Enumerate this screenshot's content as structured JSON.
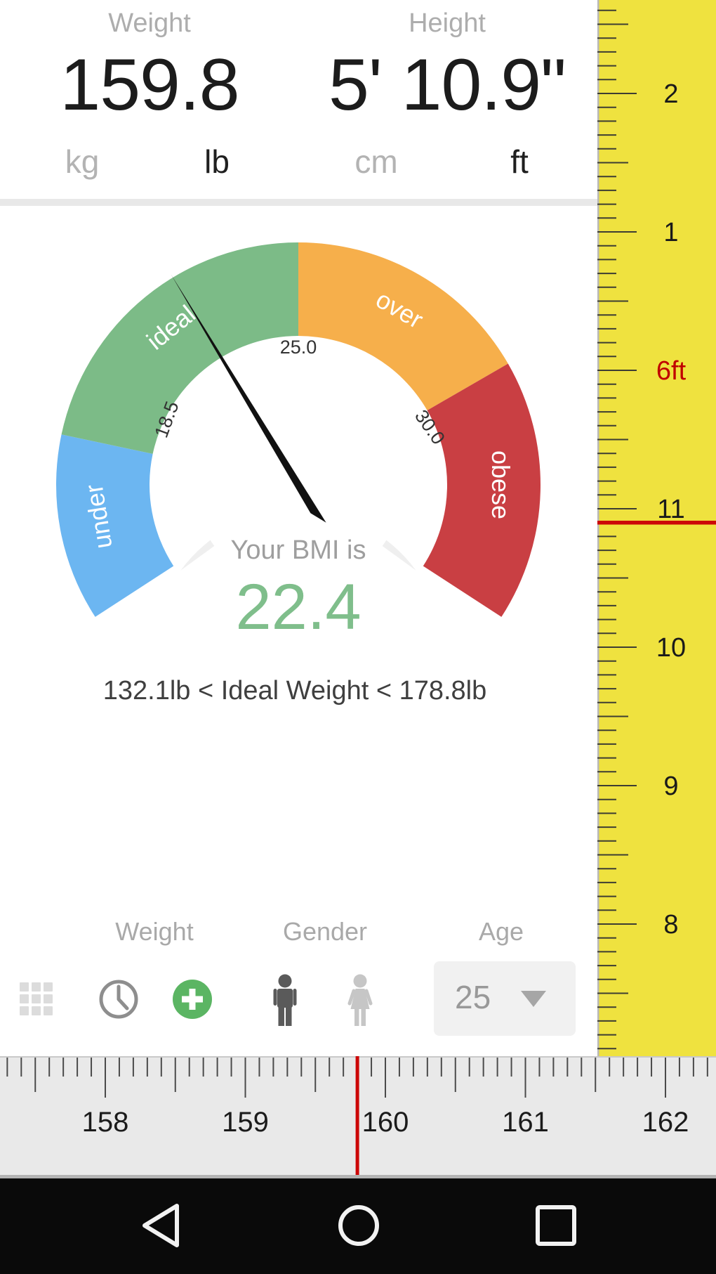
{
  "measurements": {
    "weight": {
      "label": "Weight",
      "value": "159.8",
      "units": [
        {
          "label": "kg",
          "active": false
        },
        {
          "label": "lb",
          "active": true
        }
      ]
    },
    "height": {
      "label": "Height",
      "value": "5' 10.9\"",
      "units": [
        {
          "label": "cm",
          "active": false
        },
        {
          "label": "ft",
          "active": true
        }
      ]
    }
  },
  "chart_data": {
    "type": "gauge",
    "title": "Your BMI is",
    "value": 22.4,
    "value_display": "22.4",
    "min": 15,
    "max": 35,
    "segments": [
      {
        "label": "under",
        "from": 15,
        "to": 18.5,
        "color": "#6CB6F1"
      },
      {
        "label": "ideal",
        "from": 18.5,
        "to": 25,
        "color": "#7CBB87"
      },
      {
        "label": "over",
        "from": 25,
        "to": 30,
        "color": "#F6AF4B"
      },
      {
        "label": "obese",
        "from": 30,
        "to": 35,
        "color": "#C93F43"
      }
    ],
    "ticks": [
      "18.5",
      "25.0",
      "30.0"
    ],
    "ring_color": "#EFEFEF",
    "needle_color": "#111111"
  },
  "ideal_weight": {
    "text": "132.1lb < Ideal Weight < 178.8lb"
  },
  "controls": {
    "weight_label": "Weight",
    "gender_label": "Gender",
    "age_label": "Age",
    "age_value": "25",
    "icons": [
      "grid",
      "history-clock",
      "add-entry",
      "male",
      "female"
    ],
    "accent_green": "#5BB563"
  },
  "height_ruler": {
    "bg": "#EFE23F",
    "tick_color": "#3D3D33",
    "labels": [
      "2",
      "1",
      "6ft",
      "11",
      "10",
      "9",
      "8"
    ],
    "highlight_label": "6ft",
    "highlight_color": "#C00000",
    "marker_inches": 70.9,
    "marker_color": "#CC0707"
  },
  "weight_ruler": {
    "bg": "#E9E9E9",
    "tick_color": "#4A4A4A",
    "labels": [
      "158",
      "159",
      "160",
      "161",
      "162"
    ],
    "first_value": 158,
    "marker_value": 159.8,
    "marker_color": "#CC0707"
  },
  "nav": {
    "icons": [
      "back",
      "home",
      "recents"
    ]
  }
}
